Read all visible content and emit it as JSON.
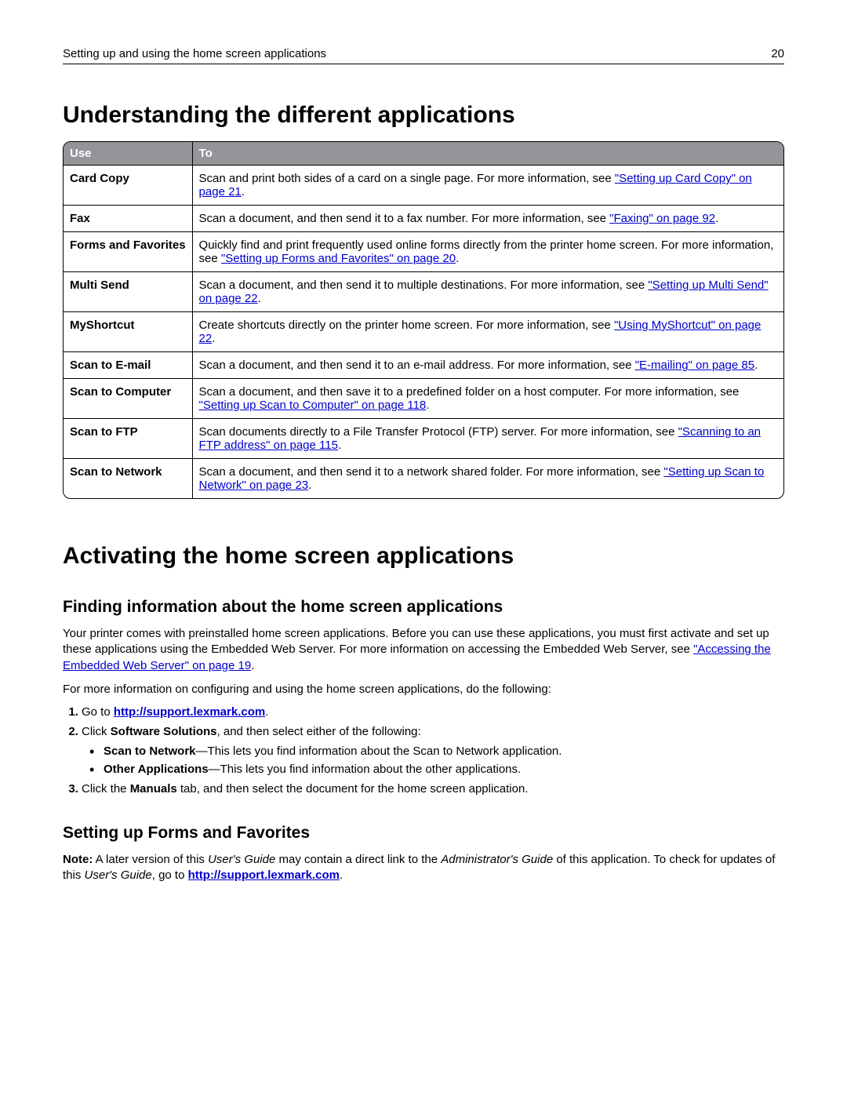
{
  "header": {
    "title": "Setting up and using the home screen applications",
    "page_number": "20"
  },
  "section1": {
    "heading": "Understanding the different applications",
    "table": {
      "col_use": "Use",
      "col_to": "To",
      "rows": [
        {
          "use": "Card Copy",
          "pre": "Scan and print both sides of a card on a single page. For more information, see ",
          "link": "\"Setting up Card Copy\" on page 21",
          "post": "."
        },
        {
          "use": "Fax",
          "pre": "Scan a document, and then send it to a fax number. For more information, see ",
          "link": "\"Faxing\" on page 92",
          "post": "."
        },
        {
          "use": "Forms and Favorites",
          "pre": "Quickly find and print frequently used online forms directly from the printer home screen. For more information, see ",
          "link": "\"Setting up Forms and Favorites\" on page 20",
          "post": "."
        },
        {
          "use": "Multi Send",
          "pre": "Scan a document, and then send it to multiple destinations. For more information, see ",
          "link": "\"Setting up Multi Send\" on page 22",
          "post": "."
        },
        {
          "use": "MyShortcut",
          "pre": "Create shortcuts directly on the printer home screen. For more information, see ",
          "link": "\"Using MyShortcut\" on page 22",
          "post": "."
        },
        {
          "use": "Scan to E-mail",
          "pre": "Scan a document, and then send it to an e-mail address. For more information, see ",
          "link": "\"E-mailing\" on page 85",
          "post": "."
        },
        {
          "use": "Scan to Computer",
          "pre": "Scan a document, and then save it to a predefined folder on a host computer. For more information, see ",
          "link": "\"Setting up Scan to Computer\" on page 118",
          "post": "."
        },
        {
          "use": "Scan to FTP",
          "pre": "Scan documents directly to a File Transfer Protocol (FTP) server. For more information, see ",
          "link": "\"Scanning to an FTP address\" on page 115",
          "post": "."
        },
        {
          "use": "Scan to Network",
          "pre": "Scan a document, and then send it to a network shared folder. For more information, see ",
          "link": "\"Setting up Scan to Network\" on page 23",
          "post": "."
        }
      ]
    }
  },
  "section2": {
    "heading": "Activating the home screen applications",
    "sub1": {
      "heading": "Finding information about the home screen applications",
      "para1_pre": "Your printer comes with preinstalled home screen applications. Before you can use these applications, you must first activate and set up these applications using the Embedded Web Server. For more information on accessing the Embedded Web Server, see ",
      "para1_link": "\"Accessing the Embedded Web Server\" on page 19",
      "para1_post": ".",
      "para2": "For more information on configuring and using the home screen applications, do the following:",
      "step1_pre": "Go to ",
      "step1_link": "http://support.lexmark.com",
      "step1_post": ".",
      "step2_pre": "Click ",
      "step2_bold": "Software Solutions",
      "step2_post": ", and then select either of the following:",
      "bullet1_bold": "Scan to Network",
      "bullet1_rest": "—This lets you find information about the Scan to Network application.",
      "bullet2_bold": "Other Applications",
      "bullet2_rest": "—This lets you find information about the other applications.",
      "step3_pre": "Click the ",
      "step3_bold": "Manuals",
      "step3_post": " tab, and then select the document for the home screen application."
    },
    "sub2": {
      "heading": "Setting up Forms and Favorites",
      "note_label": "Note:",
      "note_pre": " A later version of this ",
      "note_i1": "User's Guide",
      "note_mid1": " may contain a direct link to the ",
      "note_i2": "Administrator's Guide",
      "note_mid2": " of this application. To check for updates of this ",
      "note_i3": "User's Guide",
      "note_mid3": ", go to ",
      "note_link": "http://support.lexmark.com",
      "note_post": "."
    }
  }
}
